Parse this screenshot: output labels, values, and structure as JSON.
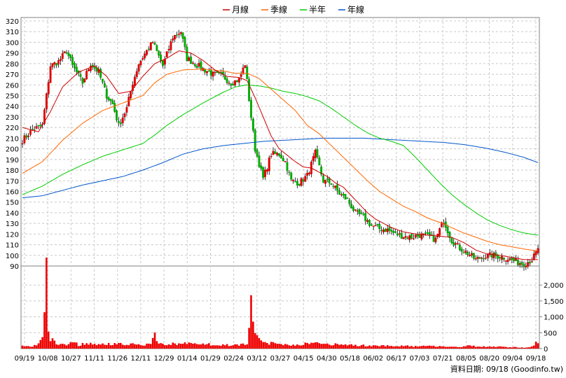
{
  "chart_data": {
    "type": "candlestick",
    "legend": [
      {
        "name": "月線",
        "color": "#cc0000"
      },
      {
        "name": "季線",
        "color": "#ff6600"
      },
      {
        "name": "半年",
        "color": "#00cc00"
      },
      {
        "name": "年線",
        "color": "#0055cc"
      }
    ],
    "credit": "資料日期: 09/18 (Goodinfo.tw)",
    "price_axis": {
      "min": 90,
      "max": 320,
      "ticks": [
        90,
        100,
        110,
        120,
        130,
        140,
        150,
        160,
        170,
        180,
        190,
        200,
        210,
        220,
        230,
        240,
        250,
        260,
        270,
        280,
        290,
        300,
        310,
        320
      ]
    },
    "volume_axis": {
      "max": 2600,
      "ticks": [
        0,
        500,
        1000,
        1500,
        2000
      ],
      "tick_labels": [
        "0",
        "500",
        "1,000",
        "1,500",
        "2,000"
      ]
    },
    "x_labels": [
      "09/19",
      "10/08",
      "10/27",
      "11/11",
      "11/26",
      "12/11",
      "12/29",
      "01/14",
      "01/29",
      "02/24",
      "03/12",
      "03/27",
      "04/15",
      "04/30",
      "05/18",
      "06/02",
      "06/17",
      "07/03",
      "07/21",
      "08/05",
      "08/20",
      "09/04",
      "09/18"
    ],
    "close_keypoints": [
      [
        0,
        208
      ],
      [
        5,
        218
      ],
      [
        10,
        222
      ],
      [
        12,
        250
      ],
      [
        14,
        278
      ],
      [
        18,
        282
      ],
      [
        22,
        292
      ],
      [
        25,
        278
      ],
      [
        30,
        262
      ],
      [
        34,
        280
      ],
      [
        38,
        272
      ],
      [
        42,
        250
      ],
      [
        45,
        242
      ],
      [
        48,
        222
      ],
      [
        52,
        238
      ],
      [
        55,
        262
      ],
      [
        58,
        280
      ],
      [
        62,
        292
      ],
      [
        65,
        300
      ],
      [
        70,
        278
      ],
      [
        75,
        305
      ],
      [
        79,
        310
      ],
      [
        82,
        285
      ],
      [
        86,
        280
      ],
      [
        90,
        275
      ],
      [
        95,
        270
      ],
      [
        100,
        268
      ],
      [
        104,
        262
      ],
      [
        108,
        265
      ],
      [
        111,
        280
      ],
      [
        114,
        230
      ],
      [
        116,
        200
      ],
      [
        120,
        172
      ],
      [
        124,
        195
      ],
      [
        128,
        195
      ],
      [
        131,
        188
      ],
      [
        134,
        170
      ],
      [
        138,
        168
      ],
      [
        142,
        175
      ],
      [
        146,
        196
      ],
      [
        150,
        170
      ],
      [
        154,
        168
      ],
      [
        158,
        158
      ],
      [
        162,
        152
      ],
      [
        166,
        140
      ],
      [
        170,
        136
      ],
      [
        174,
        128
      ],
      [
        178,
        125
      ],
      [
        182,
        124
      ],
      [
        186,
        120
      ],
      [
        190,
        118
      ],
      [
        194,
        117
      ],
      [
        198,
        119
      ],
      [
        202,
        118
      ],
      [
        206,
        115
      ],
      [
        210,
        133
      ],
      [
        214,
        114
      ],
      [
        218,
        107
      ],
      [
        222,
        102
      ],
      [
        226,
        96
      ],
      [
        230,
        99
      ],
      [
        234,
        100
      ],
      [
        238,
        99
      ],
      [
        242,
        97
      ],
      [
        246,
        94
      ],
      [
        250,
        92
      ],
      [
        254,
        96
      ],
      [
        257,
        105
      ]
    ],
    "ma_month": [
      [
        0,
        220
      ],
      [
        8,
        216
      ],
      [
        14,
        235
      ],
      [
        20,
        258
      ],
      [
        28,
        272
      ],
      [
        36,
        278
      ],
      [
        42,
        268
      ],
      [
        48,
        252
      ],
      [
        54,
        254
      ],
      [
        60,
        268
      ],
      [
        66,
        280
      ],
      [
        72,
        285
      ],
      [
        78,
        292
      ],
      [
        84,
        290
      ],
      [
        90,
        283
      ],
      [
        96,
        274
      ],
      [
        102,
        268
      ],
      [
        108,
        267
      ],
      [
        112,
        264
      ],
      [
        116,
        248
      ],
      [
        120,
        230
      ],
      [
        124,
        212
      ],
      [
        128,
        200
      ],
      [
        132,
        194
      ],
      [
        136,
        188
      ],
      [
        140,
        183
      ],
      [
        144,
        182
      ],
      [
        148,
        178
      ],
      [
        152,
        174
      ],
      [
        156,
        168
      ],
      [
        160,
        164
      ],
      [
        164,
        156
      ],
      [
        168,
        148
      ],
      [
        172,
        140
      ],
      [
        176,
        134
      ],
      [
        180,
        130
      ],
      [
        184,
        126
      ],
      [
        190,
        122
      ],
      [
        196,
        120
      ],
      [
        202,
        119
      ],
      [
        208,
        118
      ],
      [
        214,
        117
      ],
      [
        220,
        112
      ],
      [
        226,
        105
      ],
      [
        232,
        101
      ],
      [
        238,
        100
      ],
      [
        244,
        98
      ],
      [
        250,
        96
      ],
      [
        257,
        96
      ]
    ],
    "ma_quarter": [
      [
        0,
        177
      ],
      [
        10,
        188
      ],
      [
        20,
        208
      ],
      [
        30,
        224
      ],
      [
        40,
        236
      ],
      [
        50,
        243
      ],
      [
        60,
        250
      ],
      [
        66,
        262
      ],
      [
        72,
        270
      ],
      [
        80,
        274
      ],
      [
        90,
        275
      ],
      [
        100,
        273
      ],
      [
        106,
        271
      ],
      [
        112,
        271
      ],
      [
        118,
        266
      ],
      [
        124,
        256
      ],
      [
        130,
        246
      ],
      [
        136,
        236
      ],
      [
        142,
        222
      ],
      [
        148,
        214
      ],
      [
        154,
        203
      ],
      [
        160,
        192
      ],
      [
        166,
        181
      ],
      [
        172,
        170
      ],
      [
        178,
        160
      ],
      [
        184,
        153
      ],
      [
        190,
        146
      ],
      [
        196,
        141
      ],
      [
        202,
        135
      ],
      [
        208,
        131
      ],
      [
        214,
        126
      ],
      [
        220,
        121
      ],
      [
        226,
        117
      ],
      [
        232,
        113
      ],
      [
        238,
        110
      ],
      [
        244,
        108
      ],
      [
        250,
        106
      ],
      [
        257,
        104
      ]
    ],
    "ma_half": [
      [
        0,
        157
      ],
      [
        10,
        165
      ],
      [
        20,
        176
      ],
      [
        30,
        185
      ],
      [
        40,
        193
      ],
      [
        50,
        199
      ],
      [
        60,
        205
      ],
      [
        66,
        213
      ],
      [
        72,
        222
      ],
      [
        80,
        232
      ],
      [
        90,
        243
      ],
      [
        100,
        253
      ],
      [
        106,
        258
      ],
      [
        112,
        260
      ],
      [
        118,
        259
      ],
      [
        124,
        257
      ],
      [
        130,
        254
      ],
      [
        136,
        252
      ],
      [
        142,
        249
      ],
      [
        148,
        245
      ],
      [
        154,
        238
      ],
      [
        160,
        230
      ],
      [
        166,
        222
      ],
      [
        172,
        215
      ],
      [
        178,
        210
      ],
      [
        184,
        207
      ],
      [
        190,
        203
      ],
      [
        196,
        192
      ],
      [
        202,
        180
      ],
      [
        208,
        168
      ],
      [
        214,
        157
      ],
      [
        220,
        148
      ],
      [
        226,
        140
      ],
      [
        232,
        133
      ],
      [
        238,
        128
      ],
      [
        244,
        124
      ],
      [
        250,
        121
      ],
      [
        257,
        119
      ]
    ],
    "ma_year": [
      [
        0,
        154
      ],
      [
        10,
        156
      ],
      [
        20,
        161
      ],
      [
        30,
        166
      ],
      [
        40,
        170
      ],
      [
        50,
        174
      ],
      [
        60,
        180
      ],
      [
        70,
        187
      ],
      [
        80,
        195
      ],
      [
        90,
        200
      ],
      [
        100,
        203
      ],
      [
        110,
        205
      ],
      [
        120,
        207
      ],
      [
        130,
        208
      ],
      [
        140,
        209
      ],
      [
        150,
        210
      ],
      [
        160,
        210
      ],
      [
        170,
        210
      ],
      [
        180,
        209
      ],
      [
        190,
        208
      ],
      [
        200,
        207
      ],
      [
        210,
        206
      ],
      [
        220,
        204
      ],
      [
        230,
        201
      ],
      [
        240,
        197
      ],
      [
        250,
        192
      ],
      [
        257,
        187
      ]
    ],
    "volume_keypoints": [
      [
        0,
        80
      ],
      [
        4,
        60
      ],
      [
        8,
        140
      ],
      [
        10,
        420
      ],
      [
        12,
        2400
      ],
      [
        13,
        700
      ],
      [
        14,
        300
      ],
      [
        18,
        150
      ],
      [
        22,
        120
      ],
      [
        25,
        260
      ],
      [
        28,
        100
      ],
      [
        32,
        190
      ],
      [
        36,
        120
      ],
      [
        40,
        180
      ],
      [
        44,
        130
      ],
      [
        48,
        160
      ],
      [
        52,
        120
      ],
      [
        56,
        150
      ],
      [
        60,
        90
      ],
      [
        64,
        200
      ],
      [
        66,
        420
      ],
      [
        68,
        150
      ],
      [
        72,
        120
      ],
      [
        76,
        160
      ],
      [
        80,
        140
      ],
      [
        84,
        200
      ],
      [
        88,
        110
      ],
      [
        92,
        160
      ],
      [
        96,
        90
      ],
      [
        100,
        120
      ],
      [
        104,
        100
      ],
      [
        108,
        130
      ],
      [
        112,
        160
      ],
      [
        114,
        1380
      ],
      [
        115,
        900
      ],
      [
        116,
        400
      ],
      [
        118,
        260
      ],
      [
        122,
        170
      ],
      [
        126,
        180
      ],
      [
        130,
        140
      ],
      [
        134,
        110
      ],
      [
        138,
        130
      ],
      [
        142,
        160
      ],
      [
        146,
        180
      ],
      [
        150,
        150
      ],
      [
        154,
        130
      ],
      [
        158,
        130
      ],
      [
        162,
        120
      ],
      [
        166,
        110
      ],
      [
        170,
        100
      ],
      [
        174,
        90
      ],
      [
        178,
        100
      ],
      [
        182,
        90
      ],
      [
        186,
        80
      ],
      [
        190,
        90
      ],
      [
        194,
        70
      ],
      [
        198,
        70
      ],
      [
        202,
        80
      ],
      [
        206,
        80
      ],
      [
        210,
        70
      ],
      [
        214,
        60
      ],
      [
        218,
        50
      ],
      [
        222,
        90
      ],
      [
        226,
        70
      ],
      [
        230,
        60
      ],
      [
        234,
        50
      ],
      [
        238,
        60
      ],
      [
        242,
        50
      ],
      [
        246,
        40
      ],
      [
        250,
        30
      ],
      [
        254,
        60
      ],
      [
        257,
        230
      ]
    ]
  }
}
